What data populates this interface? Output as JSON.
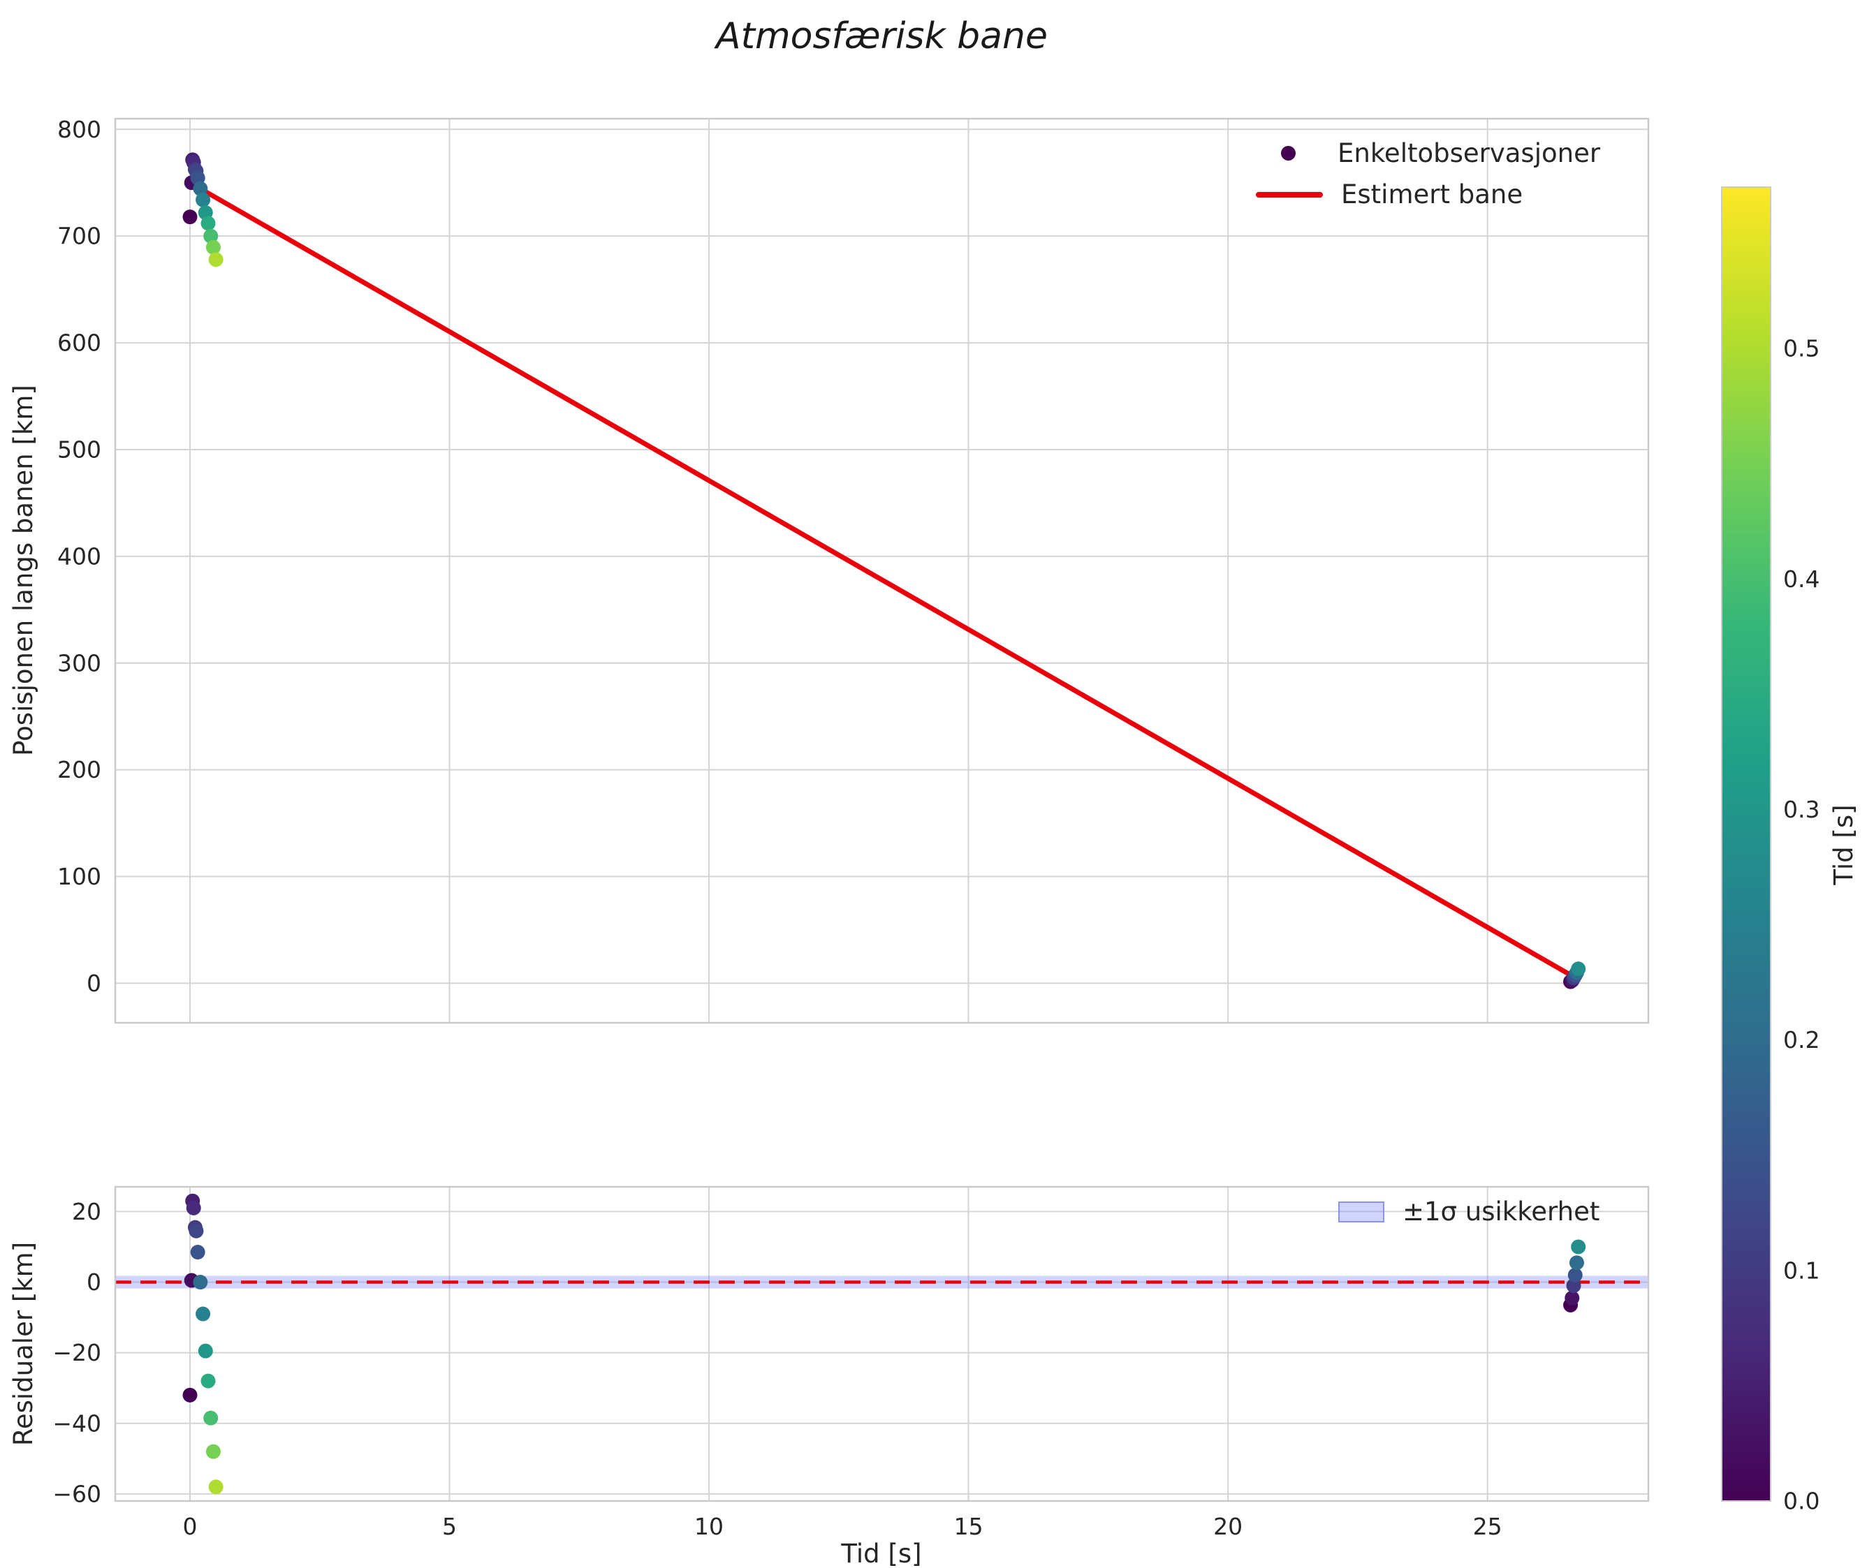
{
  "title": "Atmosfærisk bane",
  "style": {
    "background": "#ffffff",
    "grid_color": "#d4d4d4",
    "frame_color": "#c9c9c9",
    "text_color": "#262626"
  },
  "chart_data": [
    {
      "type": "scatter+line",
      "ylabel": "Posisjonen langs banen [km]",
      "yticks": [
        0,
        100,
        200,
        300,
        400,
        500,
        600,
        700,
        800
      ],
      "xticks": [
        0,
        5,
        10,
        15,
        20,
        25
      ],
      "ylim": [
        -37,
        810
      ],
      "xlim": [
        -1.44,
        28.1
      ],
      "grid": true,
      "legend": [
        "Enkeltobservasjoner",
        "Estimert bane"
      ],
      "legend_loc": "upper right",
      "line": {
        "x": [
          0,
          26.7
        ],
        "y": [
          750,
          5
        ],
        "color": "#e8000b"
      },
      "scatter": {
        "t": [
          0.0,
          0.03,
          0.05,
          0.07,
          0.1,
          0.12,
          0.15,
          0.2,
          0.25,
          0.3,
          0.35,
          0.4,
          0.45,
          0.5,
          26.6,
          26.63,
          26.66,
          26.69,
          26.72,
          26.75
        ],
        "pos": [
          718,
          750,
          771.5,
          769,
          762.5,
          761,
          754.5,
          744.5,
          734,
          722,
          712,
          700,
          689.5,
          678,
          1.5,
          2.5,
          5,
          7.5,
          10,
          13.5
        ],
        "c": [
          0.0,
          0.02,
          0.05,
          0.07,
          0.1,
          0.12,
          0.15,
          0.2,
          0.25,
          0.3,
          0.35,
          0.4,
          0.45,
          0.5,
          0.0,
          0.03,
          0.1,
          0.15,
          0.2,
          0.28
        ]
      }
    },
    {
      "type": "scatter",
      "ylabel": "Residualer [km]",
      "xlabel": "Tid [s]",
      "yticks": [
        -60,
        -40,
        -20,
        0,
        20
      ],
      "xticks": [
        0,
        5,
        10,
        15,
        20,
        25
      ],
      "ylim": [
        -62,
        27
      ],
      "xlim": [
        -1.44,
        28.1
      ],
      "grid": true,
      "legend": [
        "±1σ usikkerhet"
      ],
      "legend_loc": "upper right",
      "zero_line": {
        "y": 0,
        "color": "#e8000b",
        "style": "dashed"
      },
      "band": {
        "center": 0,
        "halfwidth": 1.8,
        "color": "#7b83f7",
        "opacity": 0.35
      },
      "scatter": {
        "t": [
          0.0,
          0.03,
          0.05,
          0.07,
          0.1,
          0.12,
          0.15,
          0.2,
          0.25,
          0.3,
          0.35,
          0.4,
          0.45,
          0.5,
          26.6,
          26.63,
          26.66,
          26.69,
          26.72,
          26.75
        ],
        "r": [
          -32,
          0.5,
          23,
          21,
          15.5,
          14.5,
          8.5,
          0,
          -9,
          -19.5,
          -28,
          -38.5,
          -48,
          -58,
          -6.5,
          -4.5,
          -1,
          2,
          5.5,
          10
        ],
        "c": [
          0.0,
          0.02,
          0.05,
          0.07,
          0.1,
          0.12,
          0.15,
          0.2,
          0.25,
          0.3,
          0.35,
          0.4,
          0.45,
          0.5,
          0.0,
          0.03,
          0.1,
          0.15,
          0.2,
          0.28
        ]
      }
    }
  ],
  "colorbar": {
    "label": "Tid [s]",
    "ticks": [
      0.0,
      0.1,
      0.2,
      0.3,
      0.4,
      0.5
    ],
    "vmin": 0.0,
    "vmax": 0.57,
    "viridis_stops": [
      "#440154",
      "#482878",
      "#3e4989",
      "#31688e",
      "#26828e",
      "#1f9e89",
      "#35b779",
      "#6ece58",
      "#b5de2b",
      "#fde725"
    ]
  }
}
